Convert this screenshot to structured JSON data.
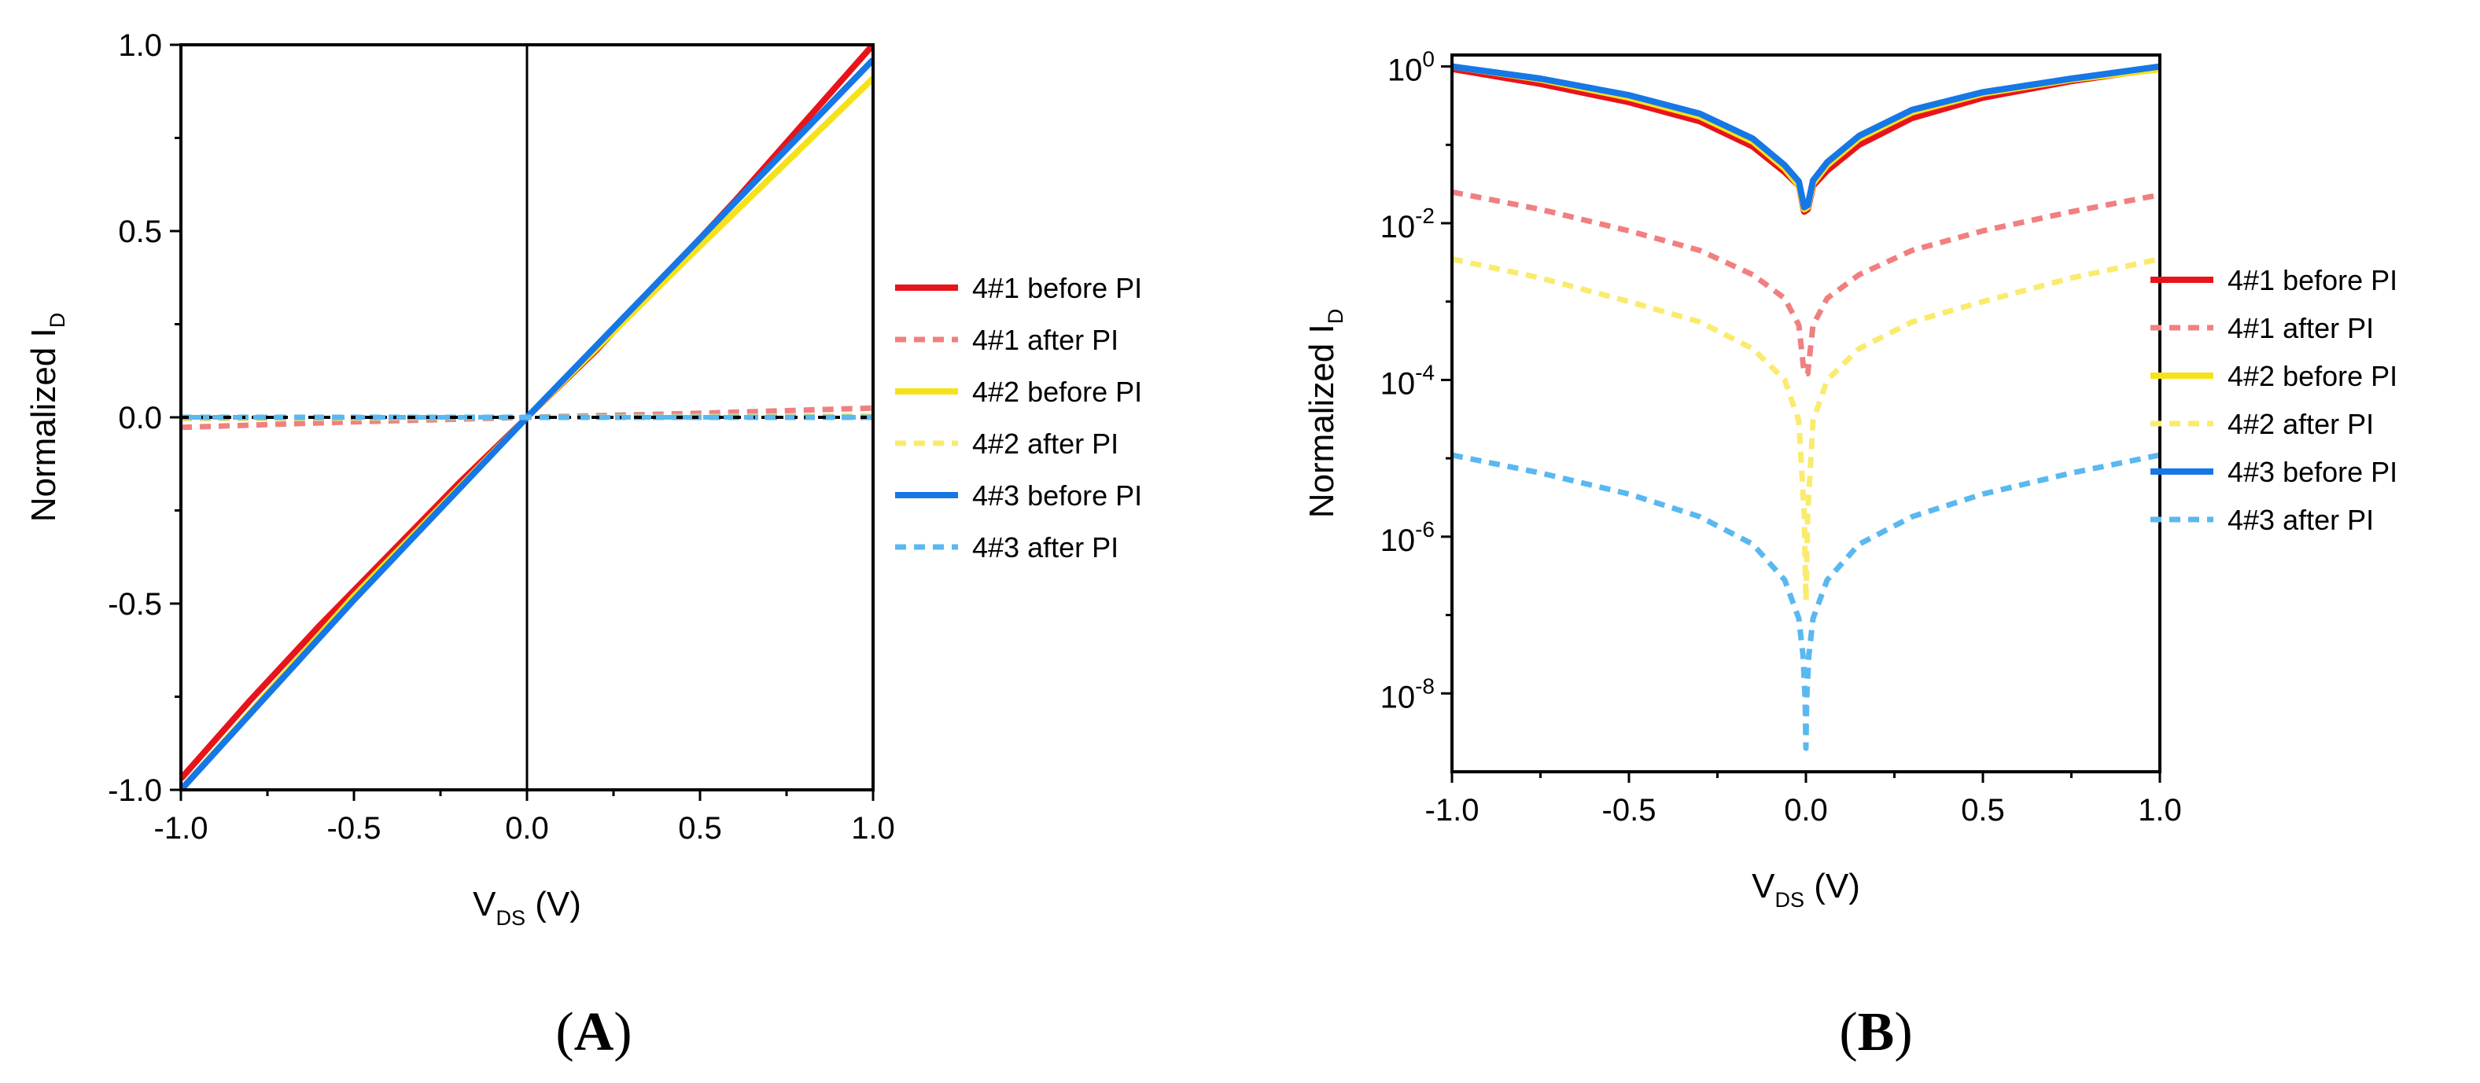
{
  "series_styles": [
    {
      "name": "4#1 before PI",
      "color": "#e8141b",
      "dashed": false
    },
    {
      "name": "4#1 after PI",
      "color": "#f08080",
      "dashed": true
    },
    {
      "name": "4#2 before PI",
      "color": "#f6e21a",
      "dashed": false
    },
    {
      "name": "4#2 after PI",
      "color": "#faeb6e",
      "dashed": true
    },
    {
      "name": "4#3 before PI",
      "color": "#1677e6",
      "dashed": false
    },
    {
      "name": "4#3 after PI",
      "color": "#5ab8f0",
      "dashed": true
    }
  ],
  "chart_data": [
    {
      "type": "line",
      "panel_label": "A",
      "title": "",
      "xlabel": {
        "main": "V",
        "sub": "DS",
        "suffix": " (V)"
      },
      "ylabel": {
        "main": "Normalized I",
        "sub": "D"
      },
      "xlim": [
        -1.0,
        1.0
      ],
      "ylim": [
        -1.0,
        1.0
      ],
      "x_ticks": [
        "-1.0",
        "-0.5",
        "0.0",
        "0.5",
        "1.0"
      ],
      "y_ticks": [
        "-1.0",
        "-0.5",
        "0.0",
        "0.5",
        "1.0"
      ],
      "yscale": "linear",
      "legend": "right",
      "series": [
        {
          "name": "4#1 before PI",
          "x": [
            -1.0,
            -0.8,
            -0.6,
            -0.4,
            -0.2,
            0.0,
            0.2,
            0.4,
            0.6,
            0.8,
            1.0
          ],
          "values": [
            -0.97,
            -0.76,
            -0.56,
            -0.37,
            -0.18,
            0.0,
            0.18,
            0.38,
            0.58,
            0.79,
            1.0
          ]
        },
        {
          "name": "4#1 after PI",
          "x": [
            -1.0,
            -0.5,
            0.0,
            0.5,
            1.0
          ],
          "values": [
            -0.027,
            -0.012,
            0.0,
            0.011,
            0.025
          ]
        },
        {
          "name": "4#2 before PI",
          "x": [
            -1.0,
            -0.5,
            0.0,
            0.5,
            1.0
          ],
          "values": [
            -1.0,
            -0.48,
            0.0,
            0.46,
            0.91
          ]
        },
        {
          "name": "4#2 after PI",
          "x": [
            -1.0,
            -0.5,
            0.0,
            0.5,
            1.0
          ],
          "values": [
            -0.004,
            -0.002,
            0.0,
            0.002,
            0.004
          ]
        },
        {
          "name": "4#3 before PI",
          "x": [
            -1.0,
            -0.5,
            0.0,
            0.5,
            1.0
          ],
          "values": [
            -1.0,
            -0.49,
            0.0,
            0.48,
            0.96
          ]
        },
        {
          "name": "4#3 after PI",
          "x": [
            -1.0,
            -0.5,
            0.0,
            0.5,
            1.0
          ],
          "values": [
            0.0,
            0.0,
            0.0,
            0.0,
            0.0
          ]
        }
      ]
    },
    {
      "type": "line",
      "panel_label": "B",
      "title": "",
      "xlabel": {
        "main": "V",
        "sub": "DS",
        "suffix": " (V)"
      },
      "ylabel": {
        "main": "Normalized I",
        "sub": "D"
      },
      "xlim": [
        -1.0,
        1.0
      ],
      "ylim": [
        1e-09,
        1.4
      ],
      "x_ticks": [
        "-1.0",
        "-0.5",
        "0.0",
        "0.5",
        "1.0"
      ],
      "y_ticks": [
        {
          "base": "10",
          "exp": "-8"
        },
        {
          "base": "10",
          "exp": "-6"
        },
        {
          "base": "10",
          "exp": "-4"
        },
        {
          "base": "10",
          "exp": "-2"
        },
        {
          "base": "10",
          "exp": "0"
        }
      ],
      "yscale": "log",
      "legend": "right",
      "series": [
        {
          "name": "4#1 before PI",
          "x": [
            -1.0,
            -0.75,
            -0.5,
            -0.3,
            -0.15,
            -0.06,
            -0.02,
            -0.005,
            0.005,
            0.02,
            0.06,
            0.15,
            0.3,
            0.5,
            0.75,
            1.0
          ],
          "values": [
            0.93,
            0.6,
            0.35,
            0.2,
            0.095,
            0.045,
            0.03,
            0.014,
            0.015,
            0.03,
            0.047,
            0.1,
            0.22,
            0.4,
            0.65,
            0.95
          ]
        },
        {
          "name": "4#1 after PI",
          "x": [
            -1.0,
            -0.75,
            -0.5,
            -0.3,
            -0.15,
            -0.06,
            -0.02,
            -0.005,
            0.005,
            0.02,
            0.06,
            0.15,
            0.3,
            0.5,
            0.75,
            1.0
          ],
          "values": [
            0.025,
            0.015,
            0.008,
            0.0045,
            0.0022,
            0.0011,
            0.0005,
            0.00012,
            0.00012,
            0.0005,
            0.0011,
            0.0022,
            0.0045,
            0.008,
            0.014,
            0.023
          ]
        },
        {
          "name": "4#2 before PI",
          "x": [
            -1.0,
            -0.75,
            -0.5,
            -0.3,
            -0.15,
            -0.06,
            -0.02,
            -0.005,
            0.005,
            0.02,
            0.06,
            0.15,
            0.3,
            0.5,
            0.75,
            1.0
          ],
          "values": [
            1.0,
            0.68,
            0.4,
            0.23,
            0.11,
            0.05,
            0.03,
            0.015,
            0.016,
            0.032,
            0.055,
            0.12,
            0.26,
            0.45,
            0.68,
            0.92
          ]
        },
        {
          "name": "4#2 after PI",
          "x": [
            -1.0,
            -0.75,
            -0.5,
            -0.3,
            -0.15,
            -0.06,
            -0.02,
            -0.005,
            0.0,
            0.005,
            0.02,
            0.06,
            0.15,
            0.3,
            0.5,
            0.75,
            1.0
          ],
          "values": [
            0.0035,
            0.002,
            0.001,
            0.00055,
            0.00025,
            0.0001,
            3e-05,
            2e-06,
            1.5e-07,
            2e-06,
            3e-05,
            0.0001,
            0.00025,
            0.00055,
            0.001,
            0.002,
            0.0035
          ]
        },
        {
          "name": "4#3 before PI",
          "x": [
            -1.0,
            -0.75,
            -0.5,
            -0.3,
            -0.15,
            -0.06,
            -0.02,
            -0.005,
            0.005,
            0.02,
            0.06,
            0.15,
            0.3,
            0.5,
            0.75,
            1.0
          ],
          "values": [
            1.0,
            0.7,
            0.43,
            0.25,
            0.12,
            0.055,
            0.034,
            0.016,
            0.017,
            0.035,
            0.06,
            0.13,
            0.28,
            0.47,
            0.7,
            1.0
          ]
        },
        {
          "name": "4#3 after PI",
          "x": [
            -1.0,
            -0.75,
            -0.5,
            -0.3,
            -0.15,
            -0.06,
            -0.02,
            -0.008,
            -0.002,
            0.0,
            0.002,
            0.008,
            0.02,
            0.06,
            0.15,
            0.3,
            0.5,
            0.75,
            1.0
          ],
          "values": [
            1.1e-05,
            6.5e-06,
            3.5e-06,
            1.8e-06,
            8e-07,
            2.8e-07,
            9e-08,
            3e-08,
            8e-09,
            2e-09,
            8e-09,
            3e-08,
            9e-08,
            2.8e-07,
            8e-07,
            1.8e-06,
            3.5e-06,
            6.5e-06,
            1.1e-05
          ]
        }
      ]
    }
  ]
}
